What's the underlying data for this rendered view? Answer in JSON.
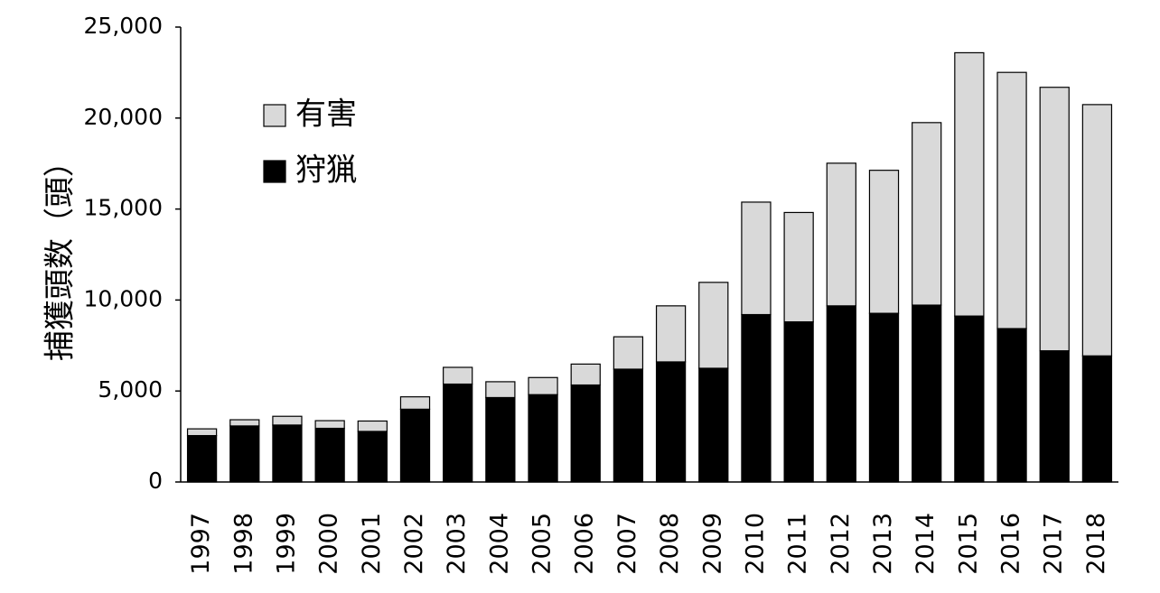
{
  "chart_data": {
    "type": "bar",
    "stacked": true,
    "categories": [
      "1997",
      "1998",
      "1999",
      "2000",
      "2001",
      "2002",
      "2003",
      "2004",
      "2005",
      "2006",
      "2007",
      "2008",
      "2009",
      "2010",
      "2011",
      "2012",
      "2013",
      "2014",
      "2015",
      "2016",
      "2017",
      "2018"
    ],
    "series": [
      {
        "name": "狩猟",
        "color": "#000000",
        "values": [
          2550,
          3080,
          3130,
          2950,
          2780,
          4000,
          5380,
          4640,
          4800,
          5330,
          6200,
          6600,
          6250,
          9200,
          8800,
          9680,
          9270,
          9720,
          9120,
          8430,
          7210,
          6930
        ]
      },
      {
        "name": "有害",
        "color": "#d9d9d9",
        "values": [
          370,
          340,
          480,
          420,
          570,
          680,
          920,
          870,
          940,
          1150,
          1780,
          3080,
          4720,
          6180,
          6010,
          7840,
          7860,
          10030,
          14470,
          14080,
          14480,
          13810
        ]
      }
    ],
    "ylabel": "捕獲頭数（頭）",
    "xlabel": "",
    "ylim": [
      0,
      25000
    ],
    "yticks": [
      0,
      5000,
      10000,
      15000,
      20000,
      25000
    ],
    "ytick_labels": [
      "0",
      "5,000",
      "10,000",
      "15,000",
      "20,000",
      "25,000"
    ],
    "legend": {
      "placement": "top-left",
      "order": [
        "有害",
        "狩猟"
      ]
    },
    "grid": false
  }
}
